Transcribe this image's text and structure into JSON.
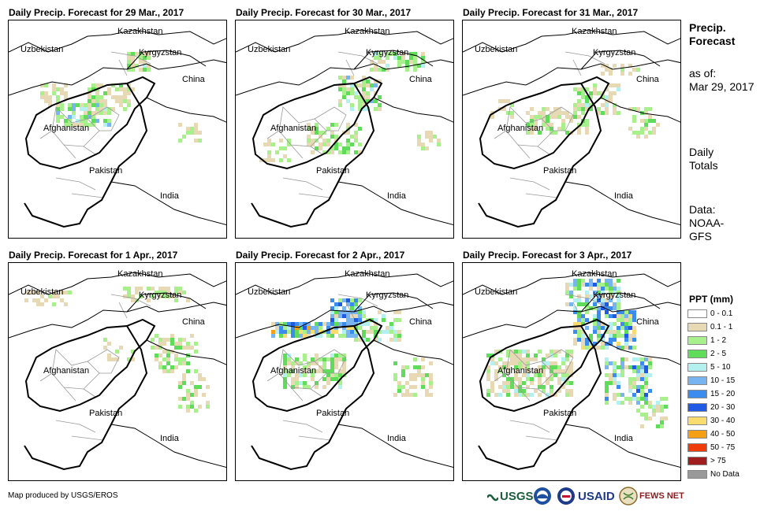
{
  "panels": [
    {
      "title": "Daily Precip. Forecast for 29 Mar., 2017"
    },
    {
      "title": "Daily Precip. Forecast for 30 Mar., 2017"
    },
    {
      "title": "Daily Precip. Forecast for 31 Mar., 2017"
    },
    {
      "title": "Daily Precip. Forecast for 1 Apr., 2017"
    },
    {
      "title": "Daily Precip. Forecast for 2 Apr., 2017"
    },
    {
      "title": "Daily Precip. Forecast for 3 Apr., 2017"
    }
  ],
  "map_labels": {
    "kazakhstan": "Kazakhstan",
    "uzbekistan": "Uzbekistan",
    "kyrgyzstan": "Kyrgyzstan",
    "china": "China",
    "afghanistan": "Afghanistan",
    "pakistan": "Pakistan",
    "india": "India"
  },
  "sidebar": {
    "title_line1": "Precip.",
    "title_line2": "Forecast",
    "asof_label": "as of:",
    "asof_date": "Mar 29, 2017",
    "daily_line1": "Daily",
    "daily_line2": "Totals",
    "data_line1": "Data:",
    "data_line2": "NOAA-",
    "data_line3": "GFS"
  },
  "legend": {
    "title": "PPT (mm)",
    "items": [
      {
        "label": "0 - 0.1",
        "color": "#ffffff"
      },
      {
        "label": "0.1 - 1",
        "color": "#e8d9b5"
      },
      {
        "label": "1 - 2",
        "color": "#a8f08c"
      },
      {
        "label": "2 - 5",
        "color": "#5fdc5a"
      },
      {
        "label": "5 - 10",
        "color": "#b4f0f0"
      },
      {
        "label": "10 - 15",
        "color": "#78b4f0"
      },
      {
        "label": "15 - 20",
        "color": "#3c8cf0"
      },
      {
        "label": "20 - 30",
        "color": "#1e5ae6"
      },
      {
        "label": "30 - 40",
        "color": "#fadc6e"
      },
      {
        "label": "40 - 50",
        "color": "#f5a014"
      },
      {
        "label": "50 - 75",
        "color": "#f03c0a"
      },
      {
        "label": "> 75",
        "color": "#a01e1e"
      },
      {
        "label": "No Data",
        "color": "#999999"
      }
    ]
  },
  "footer": {
    "credit": "Map produced by USGS/EROS",
    "logos": [
      "USGS",
      "NOAA",
      "USAID",
      "FEWS NET"
    ]
  }
}
